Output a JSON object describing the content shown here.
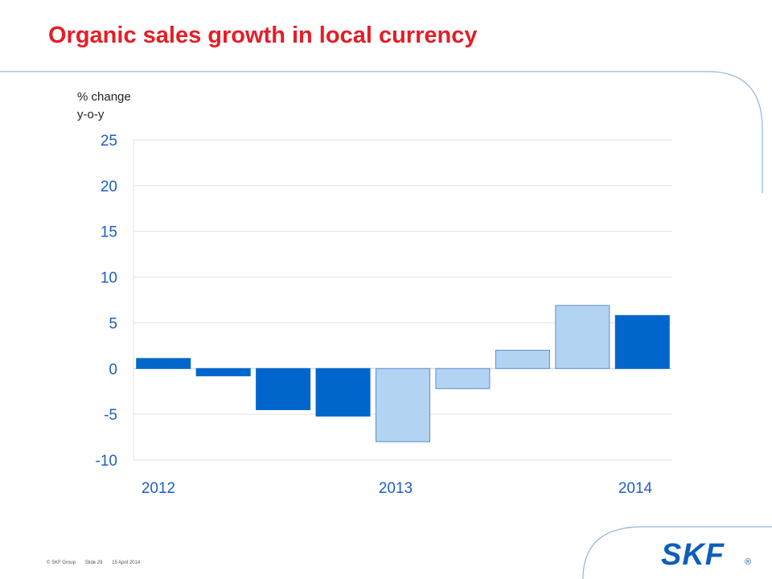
{
  "slide": {
    "title": "Organic sales growth in local currency",
    "unit_line1": "% change",
    "unit_line2": "y-o-y",
    "footer": {
      "copyright": "© SKF Group",
      "slide_number": "Slide 29",
      "date": "15 April 2014"
    },
    "logo_text": "SKF",
    "colors": {
      "title": "#e41e26",
      "dark_bar": "#0066cc",
      "light_bar": "#b3d3f2",
      "axis_text": "#1f5fbf",
      "decoration": "#8fb4e0"
    }
  },
  "chart_data": {
    "type": "bar",
    "ylim": [
      -10,
      25
    ],
    "yticks": [
      25,
      20,
      15,
      10,
      5,
      0,
      -5,
      -10
    ],
    "xlabels": [
      "2012",
      "2013",
      "2014"
    ],
    "bars": [
      {
        "value": 1.1,
        "shade": "dark"
      },
      {
        "value": -0.8,
        "shade": "dark"
      },
      {
        "value": -4.5,
        "shade": "dark"
      },
      {
        "value": -5.2,
        "shade": "dark"
      },
      {
        "value": -8.0,
        "shade": "light"
      },
      {
        "value": -2.2,
        "shade": "light"
      },
      {
        "value": 2.0,
        "shade": "light"
      },
      {
        "value": 6.9,
        "shade": "light"
      },
      {
        "value": 5.8,
        "shade": "dark"
      }
    ],
    "grid": true
  }
}
